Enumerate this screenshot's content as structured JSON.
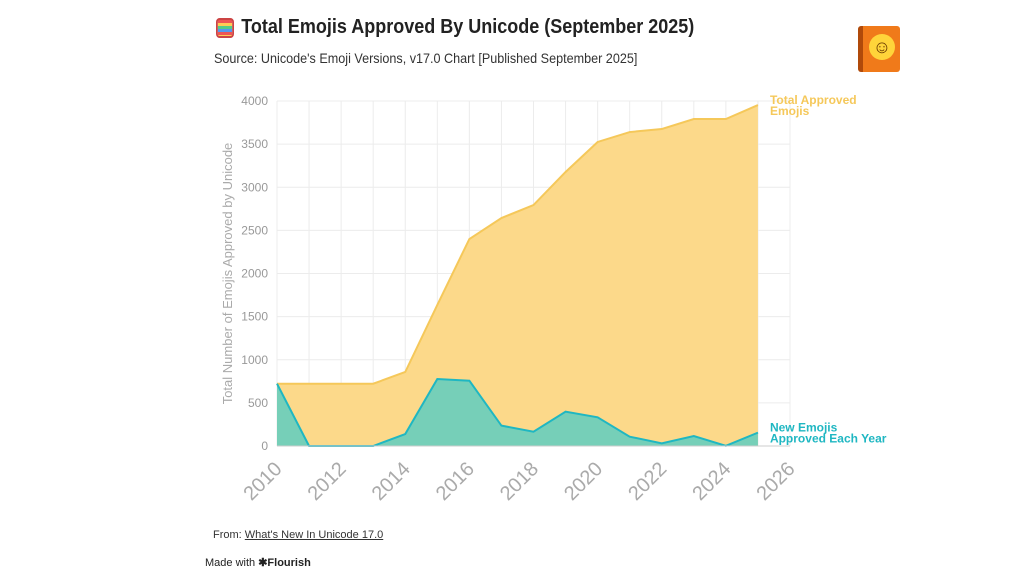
{
  "header": {
    "title": "Total Emojis Approved By Unicode (September 2025)",
    "subtitle": "Source: Unicode's Emoji Versions, v17.0 Chart [Published September 2025]",
    "title_icon": "abacus-emoji-icon",
    "corner_icon": "notebook-smiley-icon"
  },
  "footer": {
    "from_label": "From:",
    "from_link": "What's New In Unicode 17.0",
    "made_with": "Made with",
    "brand": "✱Flourish"
  },
  "chart_data": {
    "type": "area",
    "title": "Total Emojis Approved By Unicode (September 2025)",
    "ylabel": "Total Number of Emojis Approved by Unicode",
    "xlabel": "",
    "xlim": [
      2010,
      2026
    ],
    "ylim": [
      0,
      4000
    ],
    "xticks": [
      2010,
      2012,
      2014,
      2016,
      2018,
      2020,
      2022,
      2024,
      2026
    ],
    "yticks": [
      0,
      500,
      1000,
      1500,
      2000,
      2500,
      3000,
      3500,
      4000
    ],
    "grid": true,
    "x": [
      2010,
      2011,
      2012,
      2013,
      2014,
      2015,
      2016,
      2017,
      2018,
      2019,
      2020,
      2021,
      2022,
      2023,
      2024,
      2025
    ],
    "series": [
      {
        "name": "Total Approved Emojis",
        "color": "#fcd98a",
        "line": "#f5c85a",
        "label_color": "#f5c85a",
        "values": [
          722,
          722,
          722,
          722,
          858,
          1635,
          2400,
          2643,
          2794,
          3177,
          3525,
          3640,
          3675,
          3791,
          3791,
          3953
        ]
      },
      {
        "name": "New Emojis Approved Each Year",
        "color": "#6fcfbb",
        "line": "#1fb7c2",
        "label_color": "#1fb7c2",
        "values": [
          722,
          0,
          0,
          0,
          139,
          777,
          757,
          236,
          166,
          398,
          333,
          108,
          31,
          116,
          2,
          155
        ]
      }
    ]
  }
}
